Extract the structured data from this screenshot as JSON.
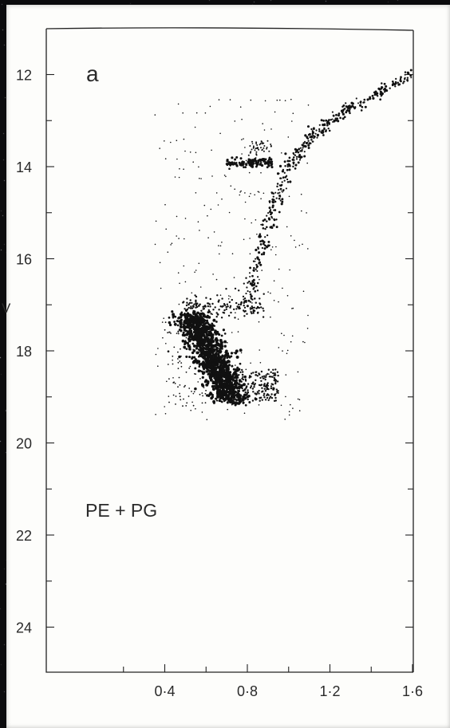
{
  "chart_data": {
    "type": "scatter",
    "panel_label": "a",
    "annotation": "PE + PG",
    "ylabel": "V",
    "xlabel": "",
    "xlim": [
      0.0,
      2.0
    ],
    "ylim": [
      25.0,
      11.0
    ],
    "y_inverted": true,
    "x_tick_labels": [
      "0·4",
      "0·8",
      "1·2",
      "1·6"
    ],
    "x_ticks": [
      0.4,
      0.8,
      1.2,
      1.6
    ],
    "y_tick_labels": [
      "12",
      "14",
      "16",
      "18",
      "20",
      "22",
      "24"
    ],
    "y_ticks": [
      12,
      14,
      16,
      18,
      20,
      22,
      24
    ],
    "point_color": "#111111",
    "sequences": {
      "main_sequence": {
        "description": "dense lower clump",
        "x_range": [
          0.5,
          0.95
        ],
        "y_range": [
          17.2,
          19.1
        ]
      },
      "turnoff": {
        "points": [
          [
            0.45,
            17.2
          ],
          [
            0.9,
            17.05
          ]
        ]
      },
      "red_giant_branch": {
        "points": [
          [
            0.8,
            17.0
          ],
          [
            0.85,
            16.0
          ],
          [
            0.92,
            15.0
          ],
          [
            1.0,
            14.0
          ],
          [
            1.1,
            13.4
          ],
          [
            1.2,
            13.0
          ],
          [
            1.35,
            12.6
          ],
          [
            1.55,
            12.1
          ],
          [
            1.72,
            11.8
          ]
        ]
      },
      "horizontal_branch": {
        "points": [
          [
            0.68,
            13.9
          ],
          [
            0.8,
            13.95
          ],
          [
            0.9,
            13.9
          ]
        ]
      }
    }
  }
}
